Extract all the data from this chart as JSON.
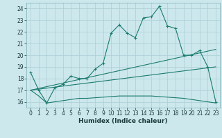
{
  "xlabel": "Humidex (Indice chaleur)",
  "background_color": "#cce8ec",
  "grid_color": "#aacdd4",
  "line_color": "#1a7a6e",
  "xlim": [
    -0.5,
    23.5
  ],
  "ylim": [
    15.5,
    24.5
  ],
  "yticks": [
    16,
    17,
    18,
    19,
    20,
    21,
    22,
    23,
    24
  ],
  "xticks": [
    0,
    1,
    2,
    3,
    4,
    5,
    6,
    7,
    8,
    9,
    10,
    11,
    12,
    13,
    14,
    15,
    16,
    17,
    18,
    19,
    20,
    21,
    22,
    23
  ],
  "line1_x": [
    0,
    1,
    2,
    3,
    4,
    5,
    6,
    7,
    8,
    9,
    10,
    11,
    12,
    13,
    14,
    15,
    16,
    17,
    18,
    19,
    20,
    21,
    22,
    23
  ],
  "line1_y": [
    18.5,
    17.0,
    15.9,
    17.2,
    17.5,
    18.2,
    18.0,
    18.0,
    18.8,
    19.3,
    21.9,
    22.6,
    21.9,
    21.5,
    23.2,
    23.3,
    24.2,
    22.5,
    22.3,
    20.0,
    20.0,
    20.4,
    19.0,
    16.0
  ],
  "line2_x": [
    0,
    1,
    2,
    3,
    4,
    5,
    6,
    7,
    8,
    9,
    10,
    11,
    12,
    13,
    14,
    15,
    16,
    17,
    18,
    19,
    20,
    21,
    22,
    23
  ],
  "line2_y": [
    17.0,
    16.5,
    15.9,
    16.0,
    16.1,
    16.2,
    16.3,
    16.3,
    16.35,
    16.4,
    16.45,
    16.5,
    16.5,
    16.5,
    16.5,
    16.5,
    16.45,
    16.4,
    16.35,
    16.3,
    16.2,
    16.1,
    16.0,
    15.9
  ],
  "line3_x": [
    0,
    23
  ],
  "line3_y": [
    17.0,
    20.5
  ],
  "line4_x": [
    0,
    23
  ],
  "line4_y": [
    17.0,
    19.0
  ]
}
